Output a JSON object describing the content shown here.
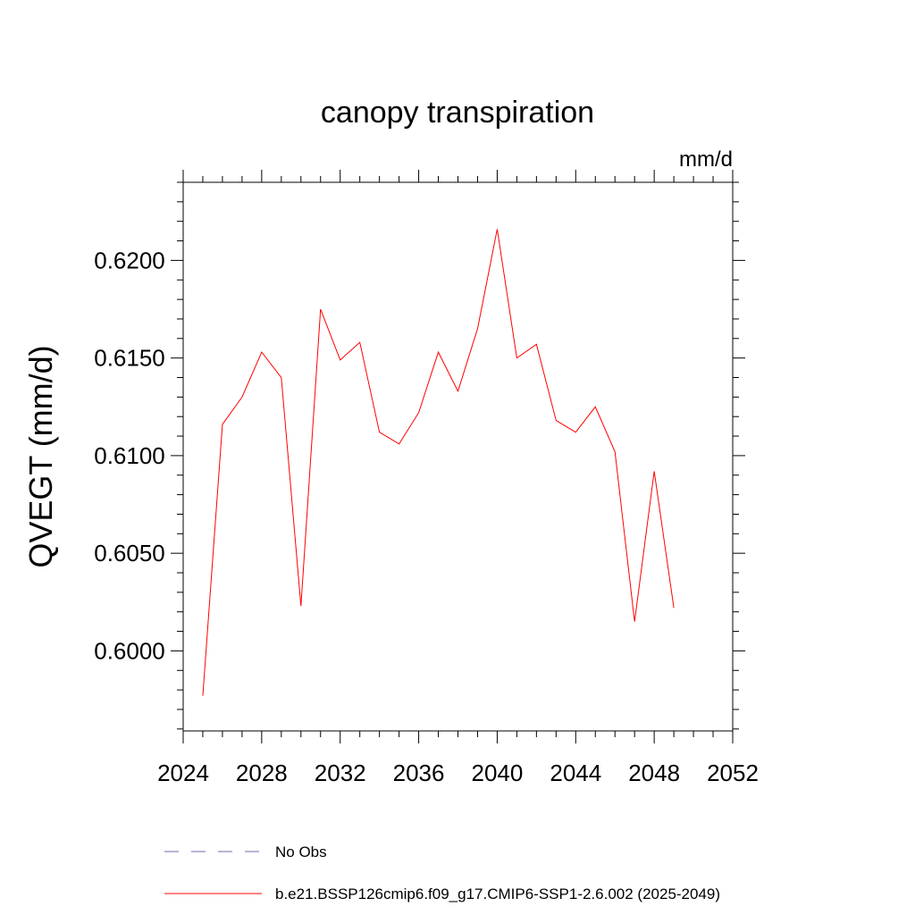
{
  "chart_data": {
    "type": "line",
    "title": "canopy transpiration",
    "units_label": "mm/d",
    "ylabel": "QVEGT  (mm/d)",
    "xlabel": "",
    "xlim": [
      2024,
      2052
    ],
    "ylim": [
      0.5959,
      0.624
    ],
    "x_ticks": [
      2024,
      2028,
      2032,
      2036,
      2040,
      2044,
      2048,
      2052
    ],
    "x_tick_labels": [
      "2024",
      "2028",
      "2032",
      "2036",
      "2040",
      "2044",
      "2048",
      "2052"
    ],
    "y_ticks": [
      0.6,
      0.605,
      0.61,
      0.615,
      0.62
    ],
    "y_tick_labels": [
      "0.6000",
      "0.6050",
      "0.6100",
      "0.6150",
      "0.6200"
    ],
    "legend_position": "bottom-left",
    "series": [
      {
        "name": "No Obs",
        "color": "#6a6ab0",
        "dash": "dashed",
        "x": [],
        "values": []
      },
      {
        "name": "b.e21.BSSP126cmip6.f09_g17.CMIP6-SSP1-2.6.002 (2025-2049)",
        "color": "#ff0000",
        "dash": "solid",
        "x": [
          2025,
          2026,
          2027,
          2028,
          2029,
          2030,
          2031,
          2032,
          2033,
          2034,
          2035,
          2036,
          2037,
          2038,
          2039,
          2040,
          2041,
          2042,
          2043,
          2044,
          2045,
          2046,
          2047,
          2048,
          2049
        ],
        "values": [
          0.5977,
          0.6116,
          0.613,
          0.6153,
          0.614,
          0.6023,
          0.6175,
          0.6149,
          0.6158,
          0.6112,
          0.6106,
          0.6122,
          0.6153,
          0.6133,
          0.6165,
          0.6216,
          0.615,
          0.6157,
          0.6118,
          0.6112,
          0.6125,
          0.6102,
          0.6015,
          0.6092,
          0.6022
        ]
      }
    ]
  }
}
